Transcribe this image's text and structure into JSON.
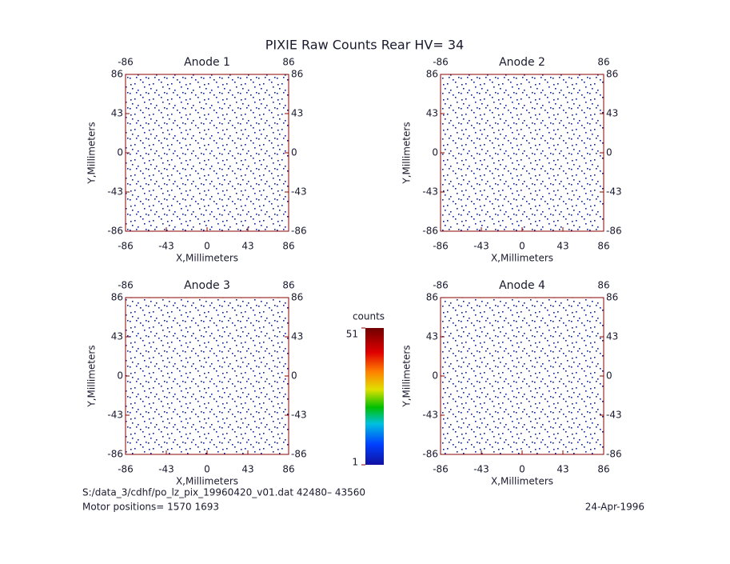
{
  "title": "PIXIE Raw Counts Rear HV= 34",
  "footer": {
    "file": "S:/data_3/cdhf/po_lz_pix_19960420_v01.dat   42480– 43560",
    "motor": "Motor positions= 1570 1693",
    "date": "24-Apr-1996"
  },
  "colorbar": {
    "label": "counts",
    "lim": [
      1,
      51
    ],
    "ticks": [
      1,
      51
    ]
  },
  "chart_data": [
    {
      "type": "heatmap",
      "title": "Anode 1",
      "xlabel": "X,Millimeters",
      "ylabel": "Y,Millimeters",
      "xlim": [
        -86,
        86
      ],
      "ylim": [
        -86,
        86
      ],
      "xticks": [
        -86,
        -43,
        0,
        43,
        86
      ],
      "yticks": [
        -86,
        -43,
        0,
        43,
        86
      ]
    },
    {
      "type": "heatmap",
      "title": "Anode 2",
      "xlabel": "X,Millimeters",
      "ylabel": "Y,Millimeters",
      "xlim": [
        -86,
        86
      ],
      "ylim": [
        -86,
        86
      ],
      "xticks": [
        -86,
        -43,
        0,
        43,
        86
      ],
      "yticks": [
        -86,
        -43,
        0,
        43,
        86
      ]
    },
    {
      "type": "heatmap",
      "title": "Anode 3",
      "xlabel": "X,Millimeters",
      "ylabel": "Y,Millimeters",
      "xlim": [
        -86,
        86
      ],
      "ylim": [
        -86,
        86
      ],
      "xticks": [
        -86,
        -43,
        0,
        43,
        86
      ],
      "yticks": [
        -86,
        -43,
        0,
        43,
        86
      ]
    },
    {
      "type": "heatmap",
      "title": "Anode 4",
      "xlabel": "X,Millimeters",
      "ylabel": "Y,Millimeters",
      "xlim": [
        -86,
        86
      ],
      "ylim": [
        -86,
        86
      ],
      "xticks": [
        -86,
        -43,
        0,
        43,
        86
      ],
      "yticks": [
        -86,
        -43,
        0,
        43,
        86
      ]
    }
  ]
}
